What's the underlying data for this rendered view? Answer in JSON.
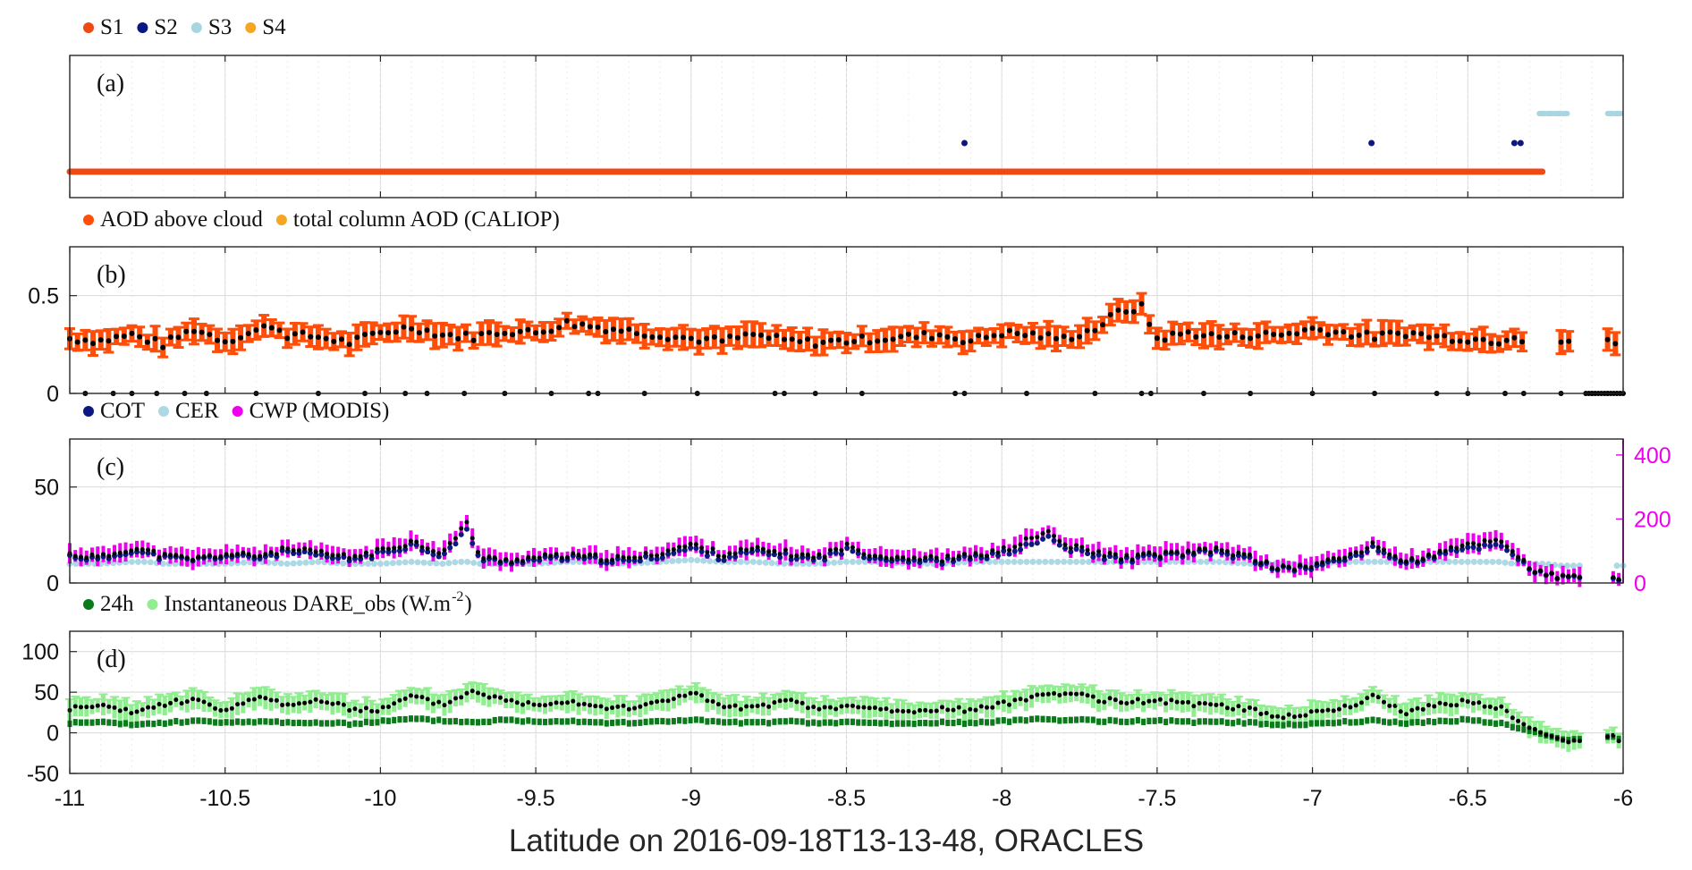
{
  "figure": {
    "xlabel": "Latitude on 2016-09-18T13-13-48, ORACLES",
    "xticks": [
      "-11",
      "-10.5",
      "-10",
      "-9.5",
      "-9",
      "-8.5",
      "-8",
      "-7.5",
      "-7",
      "-6.5",
      "-6"
    ],
    "xlim": [
      -11,
      -6
    ]
  },
  "colors": {
    "s1": "#f04a14",
    "s2": "#0c1880",
    "s3": "#a8d6e0",
    "s4": "#f5a623",
    "aod_above": "#ff4d0a",
    "cot": "#0c1880",
    "cer": "#add8e6",
    "cwp": "#ee00ee",
    "dare_24h": "#0a7a1a",
    "dare_inst": "#90ee90",
    "black": "#000000",
    "grid": "#d9d9d9",
    "axis": "#262626"
  },
  "chart_data": [
    {
      "panel": "a",
      "type": "scatter",
      "label": "(a)",
      "legend": [
        "S1",
        "S2",
        "S3",
        "S4"
      ],
      "yticks": [],
      "series": [
        {
          "name": "S1",
          "level": 1,
          "x_segments": [
            [
              -11.0,
              -8.85
            ],
            [
              -8.85,
              -6.26
            ]
          ]
        },
        {
          "name": "S2",
          "level": 2,
          "x": [
            -8.12,
            -6.81,
            -6.35,
            -6.33
          ]
        },
        {
          "name": "S3",
          "level": 3,
          "x_segments": [
            [
              -6.27,
              -6.18
            ],
            [
              -6.05,
              -6.0
            ]
          ]
        },
        {
          "name": "S4",
          "level": 4,
          "x": []
        }
      ]
    },
    {
      "panel": "b",
      "type": "scatter",
      "label": "(b)",
      "legend": [
        "AOD above cloud",
        "total column AOD (CALIOP)"
      ],
      "ylim": [
        0,
        0.75
      ],
      "yticks": [
        "0",
        "0.5"
      ],
      "series": [
        {
          "name": "AOD above cloud",
          "x": [
            -11.0,
            -10.9,
            -10.8,
            -10.7,
            -10.6,
            -10.5,
            -10.4,
            -10.35,
            -10.3,
            -10.2,
            -10.1,
            -10.0,
            -9.9,
            -9.8,
            -9.7,
            -9.6,
            -9.5,
            -9.4,
            -9.3,
            -9.2,
            -9.1,
            -9.0,
            -8.9,
            -8.8,
            -8.7,
            -8.6,
            -8.5,
            -8.4,
            -8.3,
            -8.2,
            -8.1,
            -8.0,
            -7.9,
            -7.8,
            -7.7,
            -7.62,
            -7.55,
            -7.5,
            -7.4,
            -7.3,
            -7.2,
            -7.1,
            -7.0,
            -6.9,
            -6.8,
            -6.7,
            -6.6,
            -6.5,
            -6.4,
            -6.35,
            -6.3,
            -6.25,
            -6.2,
            -6.05,
            -6.0
          ],
          "y": [
            0.28,
            0.27,
            0.3,
            0.25,
            0.33,
            0.27,
            0.32,
            0.35,
            0.3,
            0.29,
            0.26,
            0.31,
            0.34,
            0.3,
            0.29,
            0.32,
            0.31,
            0.36,
            0.34,
            0.32,
            0.3,
            0.28,
            0.27,
            0.3,
            0.27,
            0.26,
            0.27,
            0.28,
            0.29,
            0.3,
            0.27,
            0.31,
            0.3,
            0.28,
            0.33,
            0.42,
            0.44,
            0.28,
            0.31,
            0.29,
            0.3,
            0.3,
            0.33,
            0.31,
            0.29,
            0.31,
            0.29,
            0.28,
            0.27,
            0.3,
            0.26,
            0.28,
            0.27,
            0.26,
            0.26
          ],
          "err": 0.05
        },
        {
          "name": "zero-AOD points",
          "x": [
            -10.95,
            -10.86,
            -10.8,
            -10.72,
            -10.63,
            -10.56,
            -10.4,
            -10.2,
            -10.05,
            -9.92,
            -9.85,
            -9.73,
            -9.6,
            -9.45,
            -9.33,
            -9.3,
            -9.15,
            -8.98,
            -8.73,
            -8.7,
            -8.6,
            -8.45,
            -8.15,
            -8.12,
            -7.92,
            -7.7,
            -7.55,
            -7.52,
            -7.35,
            -7.2,
            -7.0,
            -6.8,
            -6.6,
            -6.5,
            -6.38,
            -6.32,
            -6.2,
            -6.1,
            -6.05
          ],
          "y": 0
        }
      ]
    },
    {
      "panel": "c",
      "type": "line",
      "label": "(c)",
      "legend": [
        "COT",
        "CER",
        "CWP (MODIS)"
      ],
      "ylim": [
        0,
        75
      ],
      "yticks": [
        "0",
        "50"
      ],
      "y2lim": [
        0,
        450
      ],
      "y2ticks": [
        "0",
        "200",
        "400"
      ],
      "x": [
        -11.0,
        -10.9,
        -10.8,
        -10.75,
        -10.7,
        -10.6,
        -10.5,
        -10.4,
        -10.3,
        -10.2,
        -10.1,
        -10.0,
        -9.9,
        -9.8,
        -9.75,
        -9.72,
        -9.68,
        -9.6,
        -9.5,
        -9.4,
        -9.3,
        -9.2,
        -9.1,
        -9.0,
        -8.9,
        -8.8,
        -8.7,
        -8.6,
        -8.5,
        -8.4,
        -8.3,
        -8.2,
        -8.1,
        -8.0,
        -7.9,
        -7.85,
        -7.8,
        -7.7,
        -7.6,
        -7.5,
        -7.4,
        -7.3,
        -7.2,
        -7.1,
        -7.0,
        -6.9,
        -6.8,
        -6.7,
        -6.6,
        -6.5,
        -6.4,
        -6.35,
        -6.3,
        -6.25,
        -6.2,
        -6.1,
        -6.0
      ],
      "series": [
        {
          "name": "COT",
          "values": [
            14,
            12,
            17,
            15,
            13,
            12,
            14,
            13,
            16,
            14,
            12,
            15,
            20,
            14,
            22,
            28,
            12,
            11,
            12,
            13,
            12,
            11,
            14,
            18,
            13,
            16,
            14,
            12,
            17,
            13,
            12,
            11,
            13,
            15,
            20,
            24,
            18,
            14,
            12,
            14,
            15,
            16,
            12,
            7,
            8,
            12,
            18,
            10,
            14,
            18,
            20,
            15,
            7,
            4,
            3,
            2,
            2
          ]
        },
        {
          "name": "CER",
          "values": [
            10,
            10,
            11,
            11,
            10,
            10,
            10,
            11,
            10,
            11,
            10,
            10,
            11,
            10,
            11,
            11,
            10,
            10,
            10,
            11,
            11,
            10,
            11,
            12,
            11,
            11,
            10,
            10,
            11,
            11,
            10,
            10,
            11,
            11,
            11,
            11,
            11,
            11,
            11,
            11,
            11,
            11,
            10,
            10,
            10,
            11,
            11,
            11,
            11,
            11,
            11,
            10,
            10,
            10,
            9,
            9,
            9
          ]
        },
        {
          "name": "CWP (MODIS)",
          "values": [
            90,
            80,
            110,
            100,
            85,
            75,
            90,
            85,
            105,
            95,
            80,
            100,
            130,
            95,
            150,
            190,
            80,
            70,
            80,
            85,
            80,
            75,
            95,
            120,
            90,
            105,
            95,
            80,
            115,
            85,
            80,
            75,
            85,
            100,
            140,
            160,
            120,
            95,
            80,
            90,
            95,
            105,
            80,
            45,
            55,
            80,
            120,
            65,
            90,
            120,
            135,
            100,
            45,
            25,
            20,
            15,
            15
          ],
          "axis": "right"
        }
      ]
    },
    {
      "panel": "d",
      "type": "line",
      "label": "(d)",
      "legend": [
        "24h",
        "Instantaneous DARE_obs (W.m",
        "-2",
        ")"
      ],
      "ylim": [
        -50,
        125
      ],
      "yticks": [
        "-50",
        "0",
        "50",
        "100"
      ],
      "x": [
        -11.0,
        -10.9,
        -10.8,
        -10.7,
        -10.6,
        -10.5,
        -10.4,
        -10.3,
        -10.2,
        -10.1,
        -10.0,
        -9.9,
        -9.8,
        -9.7,
        -9.6,
        -9.5,
        -9.4,
        -9.3,
        -9.2,
        -9.1,
        -9.0,
        -8.9,
        -8.8,
        -8.7,
        -8.6,
        -8.5,
        -8.4,
        -8.3,
        -8.2,
        -8.1,
        -8.0,
        -7.9,
        -7.8,
        -7.7,
        -7.6,
        -7.5,
        -7.4,
        -7.3,
        -7.2,
        -7.1,
        -7.0,
        -6.9,
        -6.8,
        -6.7,
        -6.6,
        -6.5,
        -6.4,
        -6.3,
        -6.25,
        -6.2,
        -6.15,
        -6.05,
        -6.0
      ],
      "series": [
        {
          "name": "24h",
          "values": [
            12,
            13,
            10,
            12,
            15,
            12,
            14,
            13,
            12,
            11,
            14,
            17,
            15,
            13,
            16,
            14,
            15,
            13,
            12,
            14,
            16,
            13,
            12,
            14,
            12,
            13,
            12,
            11,
            13,
            12,
            14,
            17,
            16,
            15,
            14,
            15,
            13,
            14,
            12,
            10,
            11,
            13,
            15,
            12,
            14,
            16,
            12,
            2,
            -3,
            -8,
            -8,
            -5,
            -7
          ]
        },
        {
          "name": "Instantaneous DARE_obs",
          "values": [
            30,
            33,
            25,
            35,
            42,
            25,
            45,
            35,
            40,
            30,
            28,
            45,
            35,
            52,
            40,
            35,
            40,
            33,
            30,
            38,
            50,
            32,
            30,
            40,
            30,
            32,
            30,
            25,
            30,
            28,
            35,
            45,
            50,
            42,
            38,
            40,
            35,
            35,
            28,
            20,
            25,
            30,
            45,
            25,
            35,
            38,
            32,
            5,
            -3,
            -8,
            -10,
            -5,
            -8
          ]
        }
      ]
    }
  ]
}
